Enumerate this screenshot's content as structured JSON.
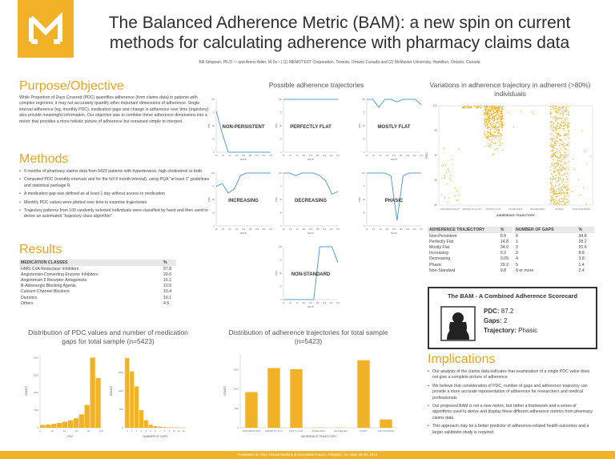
{
  "header": {
    "title": "The Balanced Adherence Metric (BAM): a new spin on current methods for calculating adherence with pharmacy claims data",
    "authors": "Bill Simpson, Ph.D ¹ ² and Amos Adler, M.Sc ¹   |  (1) MEMOTEXT Corporation, Toronto, Ontario Canada and (2) McMaster University, Hamilton, Ontario, Canada"
  },
  "colors": {
    "accent": "#f2b227",
    "heading": "#e6a61f",
    "line": "#5b9bd5"
  },
  "purpose": {
    "heading": "Purpose/Objective",
    "text": "While Proportion of Days Covered (PDC) quantifies adherence (from claims data) in patients with complex regimens, it may not accurately quantify other important dimensions of adherence. Single interval adherence (eg, monthly PDC), medication gaps and change in adherence over time (trajectory) also provide meaningful information. Our objective was to combine these adherence dimensions into a metric that provides a more holistic picture of adherence but remained simple to interpret."
  },
  "methods": {
    "heading": "Methods",
    "items": [
      "9 months of pharmacy claims data from 5423 patients with hypertension, high cholesterol or both",
      "Computed PDC (monthly intervals and for the full 9 month interval), using PQA \"at least 1\" guidelines and statistical package R.",
      "A medication gap was defined as at least 1 day without access to medication",
      "Monthly PDC values were plotted over time to examine trajectories",
      "Trajectory patterns from 100 randomly selected individuals were classified by hand and then used to derive an automated \"trajectory class algorithm\""
    ]
  },
  "results": {
    "heading": "Results",
    "table_headers": [
      "MEDICATION CLASSES",
      "%"
    ],
    "rows": [
      [
        "HMG-CoA Reductase Inhibitors",
        "27.8"
      ],
      [
        "Angiotensin-Converting Enzyme Inhibitors",
        "20.6"
      ],
      [
        "Angiotensin II Receptor Antagonists",
        "16.1"
      ],
      [
        "B-Adrenergic Blocking Agents",
        "10.5"
      ],
      [
        "Calcium Channel Blockers",
        "10.4"
      ],
      [
        "Diuretics",
        "10.1"
      ],
      [
        "Others",
        "4.5"
      ]
    ]
  },
  "trajectories": {
    "title": "Possible adherence trajectories",
    "panels": [
      {
        "label": "NON-PERSISTENT",
        "values": [
          78,
          35,
          0,
          0,
          0,
          0,
          0,
          0,
          0,
          0
        ]
      },
      {
        "label": "PERFECTLY FLAT",
        "values": [
          100,
          100,
          100,
          100,
          100,
          100,
          100,
          100,
          100,
          100
        ]
      },
      {
        "label": "MOSTLY FLAT",
        "values": [
          100,
          100,
          85,
          100,
          100,
          95,
          100,
          100,
          100,
          90
        ]
      },
      {
        "label": "INCREASING",
        "values": [
          75,
          80,
          62,
          70,
          95,
          100,
          100,
          100,
          100,
          100
        ]
      },
      {
        "label": "DECREASING",
        "values": [
          100,
          100,
          95,
          100,
          100,
          100,
          95,
          85,
          60,
          65
        ]
      },
      {
        "label": "PHASIC",
        "values": [
          100,
          100,
          100,
          100,
          95,
          10,
          95,
          100,
          100,
          100
        ]
      },
      {
        "label": "NON-STANDARD",
        "values": [
          0,
          0,
          0,
          0,
          0,
          0,
          100,
          100,
          100,
          70
        ]
      }
    ],
    "xaxis": "DAYS",
    "yaxis": "PDC",
    "x_ticks": [
      "30",
      "60",
      "90",
      "120",
      "150",
      "180",
      "210",
      "240",
      "270"
    ],
    "y_ticks": [
      "0",
      "25",
      "50",
      "75",
      "100"
    ]
  },
  "variations": {
    "title": "Variations in adherence trajectory in adherent (>80%) individuals",
    "ylabel": "PDC",
    "xlabel": "ADHERENCE TRAJECTORY",
    "categories": [
      "NON-PERSISTENT",
      "PERFECTLY FLAT",
      "MOSTLY FLAT",
      "INCREASING",
      "DECREASING",
      "PHASIC",
      "NON-STANDARD"
    ],
    "y_ticks": [
      "80",
      "85",
      "90",
      "95",
      "100"
    ]
  },
  "traj_table": {
    "headers": [
      "ADHERENCE TRAJECTORY",
      "%"
    ],
    "rows": [
      [
        "Non-Persistent",
        "0.9"
      ],
      [
        "Perfectly Flat",
        "14.8"
      ],
      [
        "Mostly Flat",
        "34.0"
      ],
      [
        "Increasing",
        "0.2"
      ],
      [
        "Decreasing",
        "0.05"
      ],
      [
        "Phasic",
        "29.2"
      ],
      [
        "Non-Standard",
        "0.8"
      ]
    ]
  },
  "gaps_table": {
    "headers": [
      "NUMBER OF GAPS",
      "%"
    ],
    "rows": [
      [
        "0",
        "34.8"
      ],
      [
        "1",
        "28.2"
      ],
      [
        "2",
        "20.6"
      ],
      [
        "3",
        "8.8"
      ],
      [
        "4",
        "3.8"
      ],
      [
        "5",
        "1.4"
      ],
      [
        "6 or more",
        "2.4"
      ]
    ]
  },
  "scorecard": {
    "title": "The BAM - A Combined Adherence Scorecard",
    "pdc_label": "PDC:",
    "pdc_value": "87.2",
    "gaps_label": "Gaps:",
    "gaps_value": "2",
    "traj_label": "Trajectory:",
    "traj_value": "Phasic"
  },
  "implications": {
    "heading": "Implications",
    "items": [
      "Our analysis of the claims data indicates that examination of a single PDC value does not give a complete picture of adherence",
      "We believe that consideration of PDC, number of gaps and adherence trajectory can provide a more accurate representation of adherence for researchers and medical professionals",
      "Our proposed BAM is not a new metric, but rather a framework and a series of algorithms used to derive and display these different adherence metrics from pharmacy claims data",
      "This approach may be a better predictor of adherence-related health outcomes and a larger validation study is required."
    ]
  },
  "dist_pdc": {
    "title": "Distribution of PDC values and number of medication gaps for total sample (n=5423)"
  },
  "dist_traj": {
    "title": "Distribution of adherence trajectories for total sample (n=5423)"
  },
  "chart_data": [
    {
      "type": "bar",
      "title": "",
      "xlabel": "PDC",
      "ylabel": "COUNT",
      "categories": [
        "0-10",
        "10-20",
        "20-30",
        "30-40",
        "40-50",
        "50-60",
        "60-70",
        "70-80",
        "80-90",
        "90-100",
        "100"
      ],
      "values": [
        80,
        90,
        110,
        140,
        170,
        210,
        270,
        380,
        650,
        2000,
        1420
      ],
      "x_ticks": [
        "0",
        "20",
        "40",
        "60",
        "80",
        "100"
      ],
      "y_ticks": [
        "0",
        "500",
        "1000",
        "1500",
        "2000"
      ],
      "ylim": [
        0,
        2100
      ]
    },
    {
      "type": "bar",
      "title": "",
      "xlabel": "NUMBER OF GAPS",
      "ylabel": "COUNT",
      "categories": [
        "0",
        "1",
        "2",
        "3",
        "4",
        "5",
        "6",
        "7",
        "8",
        "9",
        "10",
        "11",
        "12"
      ],
      "values": [
        1890,
        1530,
        1120,
        480,
        205,
        80,
        45,
        30,
        20,
        12,
        8,
        5,
        3
      ],
      "x_ticks": [
        "0",
        "1",
        "2",
        "3",
        "4",
        "5",
        "6",
        "7",
        "8",
        "9",
        "10",
        "11",
        "12"
      ],
      "y_ticks": [
        "0",
        "500",
        "1000",
        "1500"
      ],
      "ylim": [
        0,
        2000
      ]
    },
    {
      "type": "bar",
      "title": "",
      "xlabel": "ADHERENCE TRAJECTORY",
      "ylabel": "COUNT",
      "categories": [
        "NON-PERSISTENT",
        "PERFECTLY FLAT",
        "MOSTLY FLAT",
        "INCREASING",
        "DECREASING",
        "PHASIC",
        "NON-STANDARD"
      ],
      "values": [
        920,
        1540,
        1510,
        5,
        5,
        1740,
        215
      ],
      "y_ticks": [
        "0",
        "500",
        "1000",
        "1500"
      ],
      "ylim": [
        0,
        1900
      ]
    }
  ],
  "footer": "Presented at: PQA Annual Meeting & Innovation Forum, Arlington, VA, May 18-20, 2016"
}
